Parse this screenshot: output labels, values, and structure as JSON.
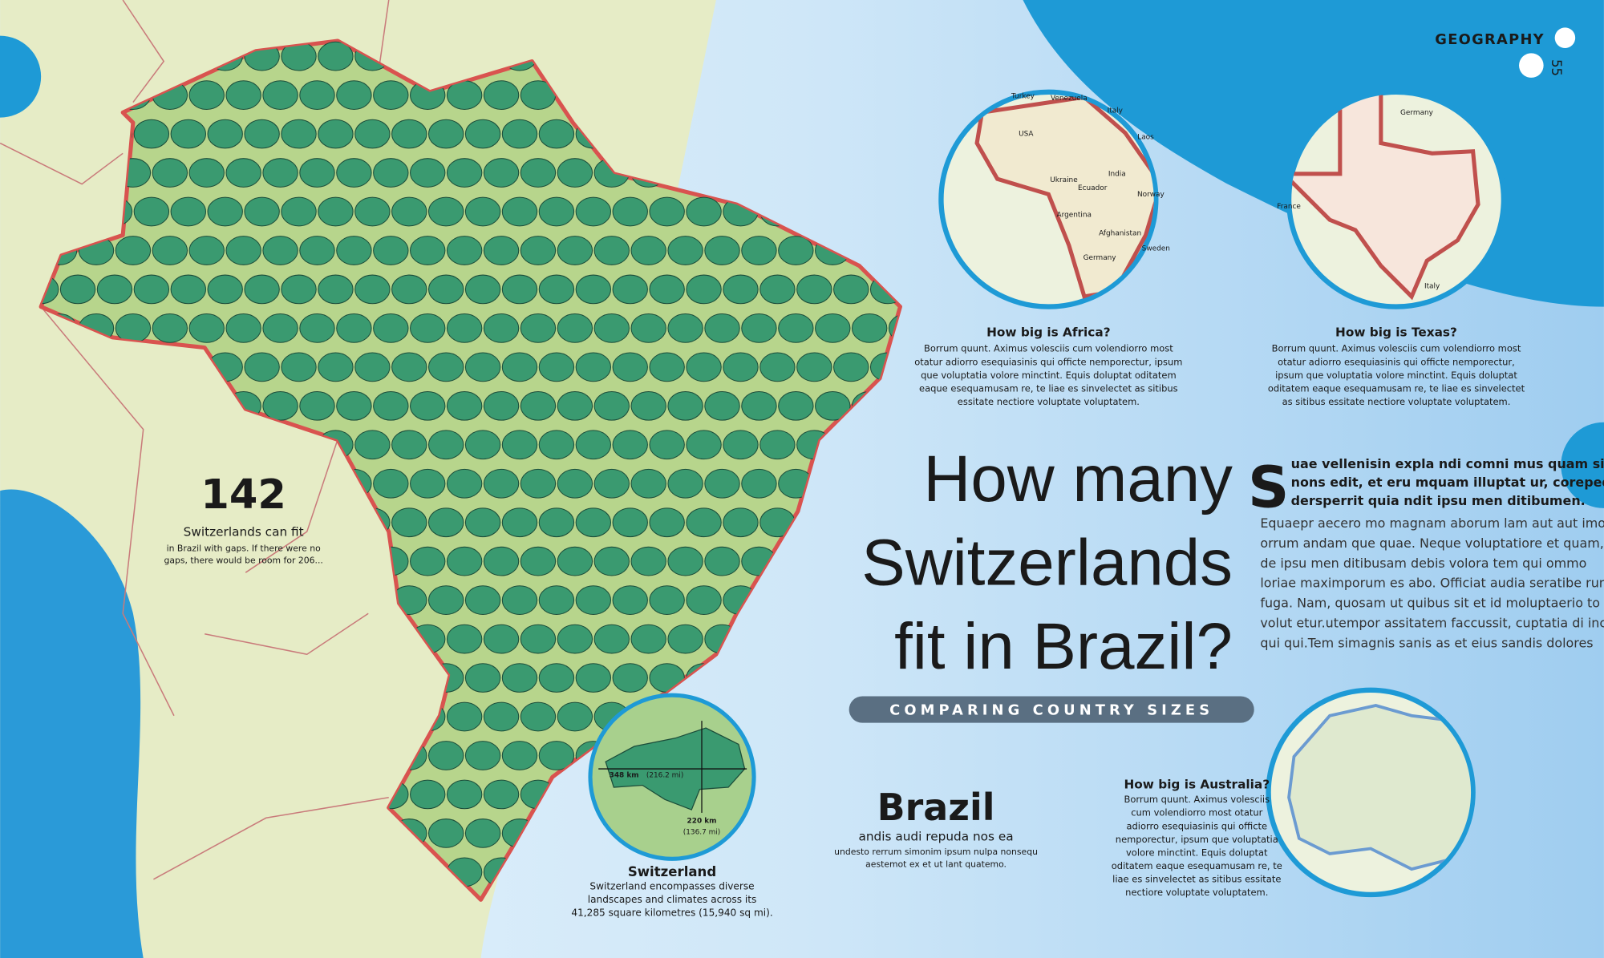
{
  "header": {
    "section": "GEOGRAPHY",
    "page_number": "55"
  },
  "title": {
    "lines": [
      "How many",
      "Switzerlands",
      "fit in Brazil?"
    ],
    "subtitle": "COMPARING COUNTRY SIZES"
  },
  "intro": {
    "drop_cap": "S",
    "lead_lines": [
      "uae vellenisin expla ndi comni mus quam sin",
      "nons edit, et eru mquam illuptat ur, corepedi",
      "dersperrit quia ndit ipsu men ditibumen."
    ],
    "body_lines": [
      "Equaepr aecero mo magnam aborum lam aut aut imol",
      "orrum andam que quae. Neque voluptatiore et quam, ut",
      "de ipsu men ditibusam debis volora tem qui ommo",
      "loriae maximporum es abo. Officiat audia seratibe rum",
      "fuga. Nam, quosam ut quibus sit et id moluptaerio to",
      "volut etur.utempor assitatem faccussit, cuptatia di incid",
      "qui qui.Tem simagnis sanis as et eius sandis dolores"
    ]
  },
  "stat": {
    "number": "142",
    "caption": "Switzerlands can fit",
    "note_lines": [
      "in Brazil with gaps. If there were no",
      "gaps, there would be room for 206..."
    ]
  },
  "switzerland": {
    "width_label": "348 km",
    "width_alt": "(216.2 mi)",
    "height_label": "220 km",
    "height_alt": "(136.7 mi)",
    "title": "Switzerland",
    "text_lines": [
      "Switzerland encompasses diverse",
      "landscapes and climates across its",
      "41,285 square kilometres (15,940 sq mi)."
    ]
  },
  "brazil": {
    "title": "Brazil",
    "subtitle": "andis audi repuda nos ea",
    "text_lines": [
      "undesto rerrum simonim ipsum nulpa nonsequ",
      "aestemot ex et ut lant quatemo."
    ]
  },
  "insets": [
    {
      "title": "How big is Africa?",
      "text_lines": [
        "Borrum quunt. Aximus volesciis cum volendiorro most",
        "otatur adiorro esequiasinis qui officte nemporectur, ipsum",
        "que voluptatia volore minctint. Equis doluptat oditatem",
        "eaque esequamusam re, te liae es sinvelectet as sitibus",
        "essitate nectiore voluptate voluptatem."
      ],
      "labels": [
        "Turkey",
        "Venezuela",
        "Italy",
        "USA",
        "Laos",
        "India",
        "Ukraine",
        "Ecuador",
        "Norway",
        "Argentina",
        "Afghanistan",
        "Germany",
        "Sweden"
      ]
    },
    {
      "title": "How big is Texas?",
      "text_lines": [
        "Borrum quunt. Aximus volesciis cum volendiorro most",
        "otatur adiorro esequiasinis qui officte nemporectur,",
        "ipsum que voluptatia volore minctint. Equis doluptat",
        "oditatem eaque esequamusam re, te liae es sinvelectet",
        "as sitibus essitate nectiore voluptate voluptatem."
      ],
      "labels": [
        "Germany",
        "France",
        "Italy"
      ]
    },
    {
      "title": "How big is Australia?",
      "text_lines": [
        "Borrum quunt. Aximus volesciis",
        "cum volendiorro most otatur",
        "adiorro esequiasinis qui officte",
        "nemporectur, ipsum que voluptatia",
        "volore minctint. Equis doluptat",
        "oditatem eaque esequamusam re, te",
        "liae es sinvelectet as sitibus essitate",
        "nectiore voluptate voluptatem."
      ],
      "labels": []
    }
  ]
}
